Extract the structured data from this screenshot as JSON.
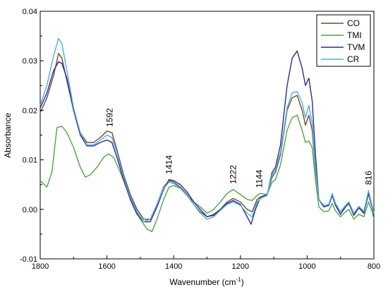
{
  "chart_data": {
    "type": "line",
    "xlabel": "Wavenumber (cm",
    "xlabel_sup": "-1",
    "xlabel_close": ")",
    "ylabel": "Absorbance",
    "xlim": [
      1800,
      800
    ],
    "ylim": [
      -0.01,
      0.04
    ],
    "x_reversed": true,
    "grid": false,
    "legend_position": "top-right",
    "xticks": [
      1800,
      1600,
      1400,
      1200,
      1000,
      800
    ],
    "xtick_labels": [
      "1800",
      "1600",
      "1400",
      "1200",
      "1000",
      "800"
    ],
    "yticks": [
      -0.01,
      0.0,
      0.01,
      0.02,
      0.03,
      0.04
    ],
    "ytick_labels": [
      "-0.01",
      "0.00",
      "0.01",
      "0.02",
      "0.03",
      "0.04"
    ],
    "annotations": [
      {
        "text": "1592",
        "x": 1592
      },
      {
        "text": "1414",
        "x": 1414
      },
      {
        "text": "1222",
        "x": 1222
      },
      {
        "text": "1144",
        "x": 1144
      },
      {
        "text": "816",
        "x": 816
      }
    ],
    "series": [
      {
        "name": "CO",
        "color": "#6b4f2a",
        "points": [
          [
            1800,
            0.0195
          ],
          [
            1780,
            0.0225
          ],
          [
            1760,
            0.027
          ],
          [
            1745,
            0.0315
          ],
          [
            1735,
            0.0305
          ],
          [
            1720,
            0.026
          ],
          [
            1700,
            0.02
          ],
          [
            1680,
            0.0155
          ],
          [
            1660,
            0.0135
          ],
          [
            1640,
            0.0135
          ],
          [
            1620,
            0.0145
          ],
          [
            1600,
            0.0158
          ],
          [
            1585,
            0.0155
          ],
          [
            1570,
            0.012
          ],
          [
            1550,
            0.007
          ],
          [
            1530,
            0.003
          ],
          [
            1510,
            0.0
          ],
          [
            1490,
            -0.002
          ],
          [
            1470,
            -0.002
          ],
          [
            1450,
            0.001
          ],
          [
            1430,
            0.0045
          ],
          [
            1414,
            0.0058
          ],
          [
            1400,
            0.0055
          ],
          [
            1380,
            0.0045
          ],
          [
            1360,
            0.003
          ],
          [
            1340,
            0.001
          ],
          [
            1320,
            -0.0005
          ],
          [
            1300,
            -0.0015
          ],
          [
            1280,
            -0.001
          ],
          [
            1260,
            0.0
          ],
          [
            1240,
            0.0015
          ],
          [
            1222,
            0.0022
          ],
          [
            1200,
            0.0015
          ],
          [
            1180,
            0.0
          ],
          [
            1165,
            -0.0005
          ],
          [
            1150,
            0.002
          ],
          [
            1140,
            0.0025
          ],
          [
            1120,
            0.003
          ],
          [
            1105,
            0.0065
          ],
          [
            1095,
            0.0075
          ],
          [
            1080,
            0.011
          ],
          [
            1060,
            0.02
          ],
          [
            1045,
            0.0225
          ],
          [
            1030,
            0.023
          ],
          [
            1015,
            0.02
          ],
          [
            1005,
            0.017
          ],
          [
            995,
            0.019
          ],
          [
            985,
            0.016
          ],
          [
            975,
            0.008
          ],
          [
            965,
            0.002
          ],
          [
            950,
            0.0005
          ],
          [
            935,
            0.0008
          ],
          [
            925,
            0.003
          ],
          [
            915,
            0.001
          ],
          [
            900,
            -0.0005
          ],
          [
            885,
            0.0005
          ],
          [
            875,
            0.0012
          ],
          [
            860,
            -0.001
          ],
          [
            845,
            0.0005
          ],
          [
            830,
            -0.0005
          ],
          [
            816,
            0.0035
          ],
          [
            805,
            0.0005
          ],
          [
            800,
            -0.001
          ]
        ]
      },
      {
        "name": "TMI",
        "color": "#4aa83a",
        "points": [
          [
            1800,
            0.0058
          ],
          [
            1780,
            0.0045
          ],
          [
            1765,
            0.0075
          ],
          [
            1750,
            0.0165
          ],
          [
            1735,
            0.0168
          ],
          [
            1720,
            0.0155
          ],
          [
            1700,
            0.0125
          ],
          [
            1680,
            0.0085
          ],
          [
            1665,
            0.0065
          ],
          [
            1650,
            0.007
          ],
          [
            1630,
            0.0085
          ],
          [
            1610,
            0.0105
          ],
          [
            1595,
            0.0112
          ],
          [
            1580,
            0.0105
          ],
          [
            1560,
            0.0075
          ],
          [
            1540,
            0.004
          ],
          [
            1520,
            0.0005
          ],
          [
            1500,
            -0.002
          ],
          [
            1480,
            -0.004
          ],
          [
            1465,
            -0.0045
          ],
          [
            1450,
            -0.002
          ],
          [
            1430,
            0.002
          ],
          [
            1414,
            0.0045
          ],
          [
            1400,
            0.0048
          ],
          [
            1380,
            0.0042
          ],
          [
            1360,
            0.0028
          ],
          [
            1340,
            0.0015
          ],
          [
            1320,
            0.0005
          ],
          [
            1300,
            -0.0008
          ],
          [
            1280,
            0.0
          ],
          [
            1260,
            0.0015
          ],
          [
            1240,
            0.0032
          ],
          [
            1222,
            0.004
          ],
          [
            1200,
            0.003
          ],
          [
            1180,
            0.002
          ],
          [
            1165,
            0.0018
          ],
          [
            1150,
            0.0028
          ],
          [
            1140,
            0.0032
          ],
          [
            1120,
            0.003
          ],
          [
            1105,
            0.0055
          ],
          [
            1095,
            0.006
          ],
          [
            1080,
            0.009
          ],
          [
            1060,
            0.016
          ],
          [
            1045,
            0.0185
          ],
          [
            1030,
            0.019
          ],
          [
            1015,
            0.016
          ],
          [
            1005,
            0.0135
          ],
          [
            995,
            0.0138
          ],
          [
            985,
            0.0125
          ],
          [
            975,
            0.006
          ],
          [
            965,
            0.0005
          ],
          [
            950,
            -0.0005
          ],
          [
            935,
            -0.0003
          ],
          [
            925,
            0.0012
          ],
          [
            915,
            -0.0003
          ],
          [
            900,
            -0.0015
          ],
          [
            885,
            -0.0005
          ],
          [
            875,
            0.0
          ],
          [
            860,
            -0.002
          ],
          [
            845,
            -0.001
          ],
          [
            830,
            -0.0015
          ],
          [
            816,
            0.0015
          ],
          [
            805,
            -0.0005
          ],
          [
            800,
            -0.002
          ]
        ]
      },
      {
        "name": "TVM",
        "color": "#2a2aa8",
        "points": [
          [
            1800,
            0.0205
          ],
          [
            1780,
            0.0235
          ],
          [
            1760,
            0.028
          ],
          [
            1745,
            0.0298
          ],
          [
            1735,
            0.0295
          ],
          [
            1720,
            0.0265
          ],
          [
            1700,
            0.02
          ],
          [
            1680,
            0.015
          ],
          [
            1660,
            0.0128
          ],
          [
            1640,
            0.0128
          ],
          [
            1620,
            0.0135
          ],
          [
            1600,
            0.014
          ],
          [
            1585,
            0.0135
          ],
          [
            1570,
            0.0105
          ],
          [
            1550,
            0.006
          ],
          [
            1530,
            0.002
          ],
          [
            1510,
            -0.001
          ],
          [
            1490,
            -0.0025
          ],
          [
            1470,
            -0.0025
          ],
          [
            1450,
            0.0005
          ],
          [
            1430,
            0.004
          ],
          [
            1414,
            0.006
          ],
          [
            1400,
            0.0058
          ],
          [
            1380,
            0.005
          ],
          [
            1360,
            0.0035
          ],
          [
            1340,
            0.0015
          ],
          [
            1320,
            0.0
          ],
          [
            1300,
            -0.0015
          ],
          [
            1280,
            -0.0012
          ],
          [
            1260,
            0.0
          ],
          [
            1240,
            0.0012
          ],
          [
            1222,
            0.0018
          ],
          [
            1200,
            0.001
          ],
          [
            1180,
            -0.0015
          ],
          [
            1168,
            -0.003
          ],
          [
            1155,
            0.0
          ],
          [
            1140,
            0.0025
          ],
          [
            1120,
            0.0028
          ],
          [
            1105,
            0.0075
          ],
          [
            1095,
            0.0085
          ],
          [
            1080,
            0.013
          ],
          [
            1060,
            0.025
          ],
          [
            1045,
            0.0305
          ],
          [
            1030,
            0.032
          ],
          [
            1015,
            0.0285
          ],
          [
            1005,
            0.025
          ],
          [
            995,
            0.0265
          ],
          [
            985,
            0.022
          ],
          [
            975,
            0.011
          ],
          [
            965,
            0.002
          ],
          [
            950,
            0.0005
          ],
          [
            935,
            0.0008
          ],
          [
            925,
            0.0028
          ],
          [
            915,
            0.0008
          ],
          [
            900,
            -0.001
          ],
          [
            885,
            0.0005
          ],
          [
            875,
            0.0012
          ],
          [
            860,
            -0.0012
          ],
          [
            845,
            0.0003
          ],
          [
            830,
            -0.0008
          ],
          [
            816,
            0.0032
          ],
          [
            805,
            0.0003
          ],
          [
            800,
            -0.001
          ]
        ]
      },
      {
        "name": "CR",
        "color": "#4ab0e0",
        "points": [
          [
            1800,
            0.021
          ],
          [
            1780,
            0.025
          ],
          [
            1760,
            0.031
          ],
          [
            1745,
            0.0345
          ],
          [
            1735,
            0.0335
          ],
          [
            1720,
            0.028
          ],
          [
            1700,
            0.0205
          ],
          [
            1680,
            0.0155
          ],
          [
            1660,
            0.013
          ],
          [
            1640,
            0.013
          ],
          [
            1620,
            0.014
          ],
          [
            1600,
            0.015
          ],
          [
            1585,
            0.0145
          ],
          [
            1570,
            0.0115
          ],
          [
            1550,
            0.0065
          ],
          [
            1530,
            0.0025
          ],
          [
            1510,
            -0.0005
          ],
          [
            1490,
            -0.0025
          ],
          [
            1470,
            -0.002
          ],
          [
            1450,
            0.001
          ],
          [
            1430,
            0.0042
          ],
          [
            1414,
            0.0055
          ],
          [
            1400,
            0.0052
          ],
          [
            1380,
            0.0043
          ],
          [
            1360,
            0.0028
          ],
          [
            1340,
            0.001
          ],
          [
            1320,
            -0.0008
          ],
          [
            1300,
            -0.002
          ],
          [
            1280,
            -0.0015
          ],
          [
            1260,
            -0.0002
          ],
          [
            1240,
            0.001
          ],
          [
            1222,
            0.0015
          ],
          [
            1200,
            0.0008
          ],
          [
            1180,
            -0.0008
          ],
          [
            1165,
            -0.0015
          ],
          [
            1150,
            0.0015
          ],
          [
            1140,
            0.0022
          ],
          [
            1120,
            0.0028
          ],
          [
            1105,
            0.007
          ],
          [
            1095,
            0.008
          ],
          [
            1080,
            0.0115
          ],
          [
            1060,
            0.0205
          ],
          [
            1045,
            0.0235
          ],
          [
            1030,
            0.0238
          ],
          [
            1015,
            0.0215
          ],
          [
            1005,
            0.0185
          ],
          [
            995,
            0.021
          ],
          [
            985,
            0.0175
          ],
          [
            975,
            0.0085
          ],
          [
            965,
            0.002
          ],
          [
            950,
            0.0008
          ],
          [
            935,
            0.001
          ],
          [
            925,
            0.0032
          ],
          [
            915,
            0.0012
          ],
          [
            900,
            -0.0005
          ],
          [
            885,
            0.0008
          ],
          [
            875,
            0.0015
          ],
          [
            860,
            -0.0008
          ],
          [
            845,
            0.0006
          ],
          [
            830,
            -0.0004
          ],
          [
            816,
            0.0038
          ],
          [
            805,
            0.0006
          ],
          [
            800,
            -0.0008
          ]
        ]
      }
    ]
  }
}
